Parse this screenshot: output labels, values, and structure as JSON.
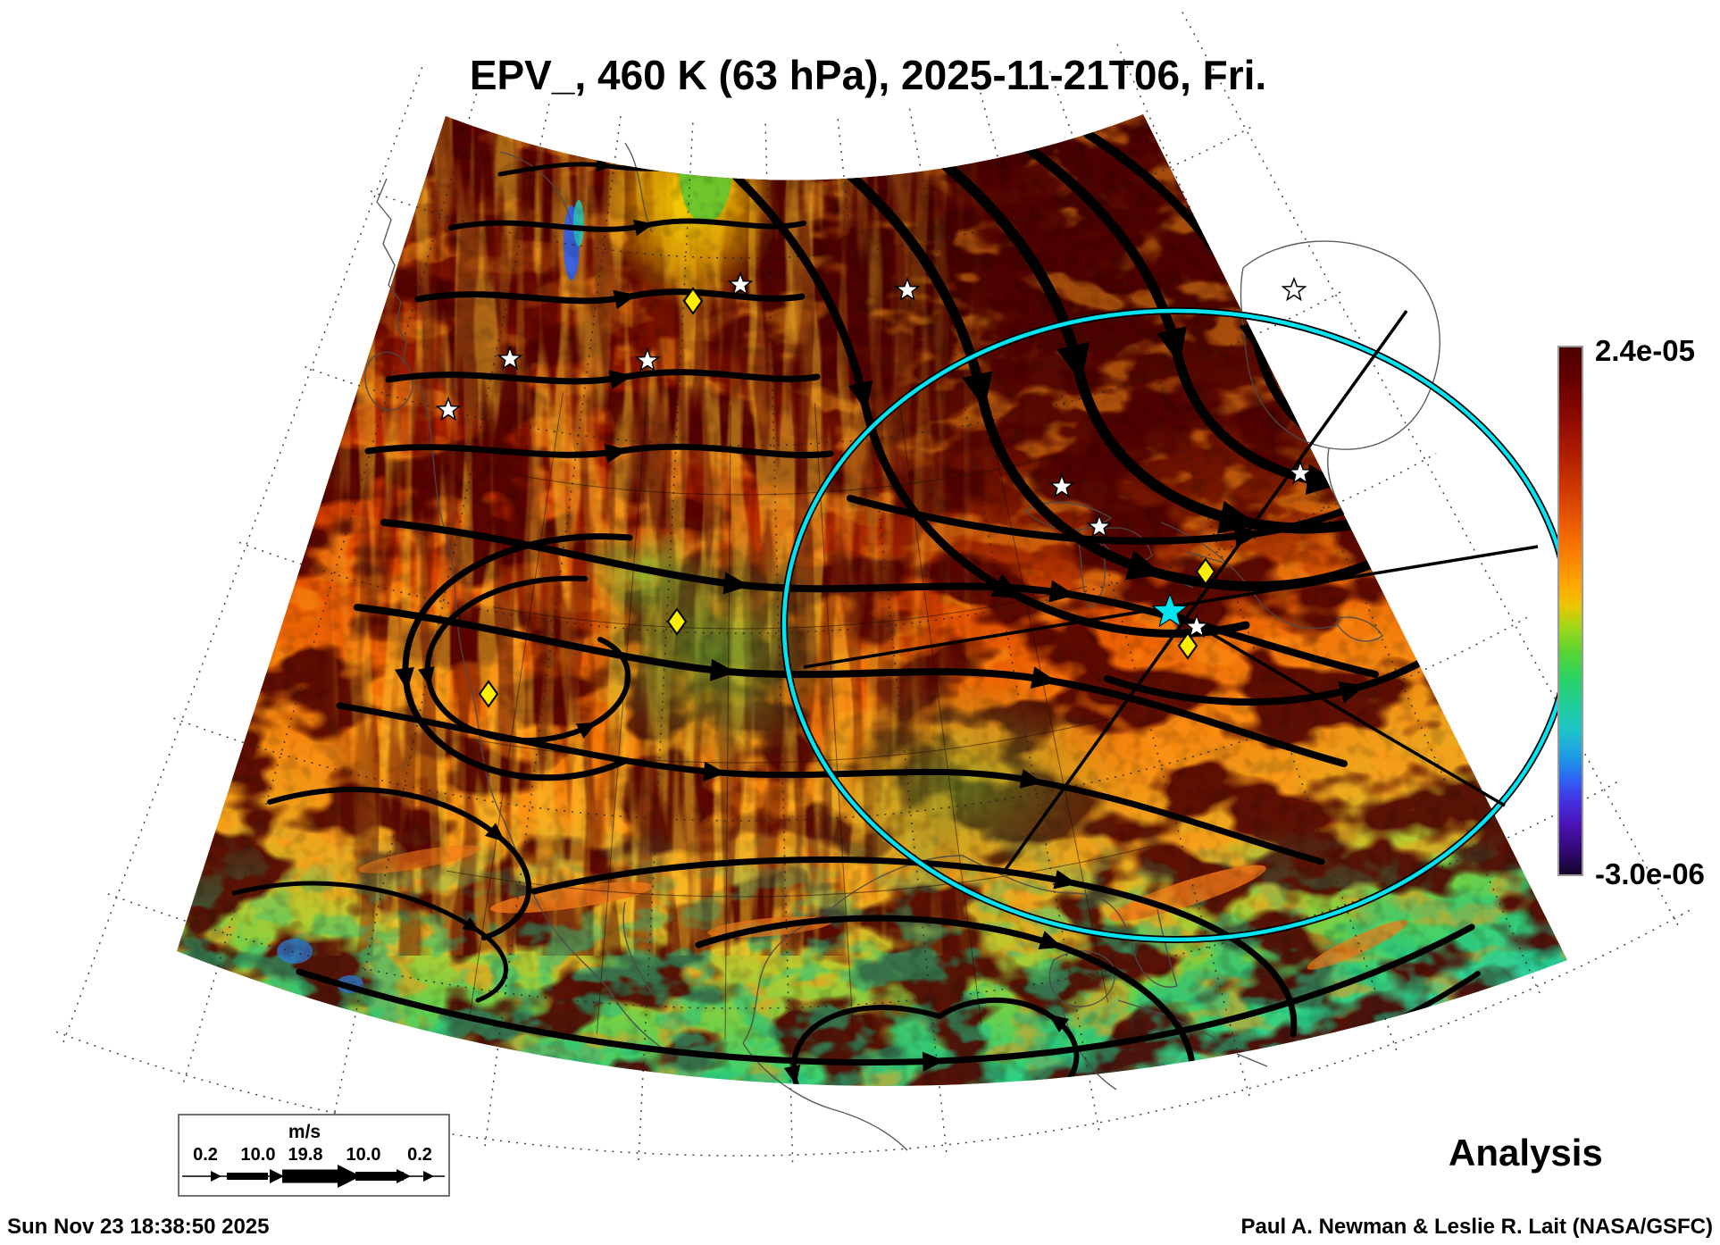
{
  "title": "EPV_, 460 K (63 hPa), 2025-11-21T06, Fri.",
  "colorbar": {
    "max_label": "2.4e-05",
    "min_label": "-3.0e-06"
  },
  "wind_legend": {
    "unit": "m/s",
    "values": [
      "0.2",
      "10.0",
      "19.8",
      "10.0",
      "0.2"
    ]
  },
  "footer": {
    "timestamp": "Sun Nov 23 18:38:50 2025",
    "credit": "Paul A. Newman & Leslie R. Lait (NASA/GSFC)",
    "mode_label": "Analysis"
  },
  "colors": {
    "ring_cyan": "#00e4f2",
    "marker_yellow": "#ffee00",
    "star_white": "#ffffff",
    "streamline_black": "#000000",
    "field_max_maroon": "#4a0000",
    "field_min_teal": "#2ec4ae"
  }
}
